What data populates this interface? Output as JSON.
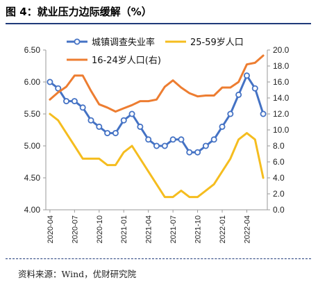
{
  "figure": {
    "title": "图 4：就业压力边际缓解（%）",
    "source": "资料来源：Wind，优财研究院"
  },
  "chart_data": {
    "type": "line",
    "categories": [
      "2020-04",
      "2020-05",
      "2020-06",
      "2020-07",
      "2020-08",
      "2020-09",
      "2020-10",
      "2020-11",
      "2020-12",
      "2021-01",
      "2021-02",
      "2021-03",
      "2021-04",
      "2021-05",
      "2021-06",
      "2021-07",
      "2021-08",
      "2021-09",
      "2021-10",
      "2021-11",
      "2021-12",
      "2022-01",
      "2022-02",
      "2022-03",
      "2022-04",
      "2022-05",
      "2022-06"
    ],
    "x_tick_labels": [
      "2020-04",
      "2020-07",
      "2020-10",
      "2021-01",
      "2021-04",
      "2021-07",
      "2021-10",
      "2022-01",
      "2022-04"
    ],
    "left_axis": {
      "ylim": [
        4.0,
        6.5
      ],
      "ticks": [
        "4.00",
        "4.50",
        "5.00",
        "5.50",
        "6.00",
        "6.50"
      ]
    },
    "right_axis": {
      "ylim": [
        0.0,
        20.0
      ],
      "ticks": [
        "0.0",
        "2.0",
        "4.0",
        "6.0",
        "8.0",
        "10.0",
        "12.0",
        "14.0",
        "16.0",
        "18.0",
        "20.0"
      ]
    },
    "legend_position": "top",
    "series": [
      {
        "name": "城镇调查失业率",
        "axis": "left",
        "color": "#4472c4",
        "marker": "circle",
        "values": [
          6.0,
          5.9,
          5.7,
          5.7,
          5.6,
          5.4,
          5.3,
          5.2,
          5.2,
          5.4,
          5.5,
          5.3,
          5.1,
          5.0,
          5.0,
          5.1,
          5.1,
          4.9,
          4.9,
          5.0,
          5.1,
          5.3,
          5.5,
          5.8,
          6.1,
          5.9,
          5.5
        ]
      },
      {
        "name": "25-59岁人口",
        "axis": "left",
        "color": "#f5bd1f",
        "values": [
          5.5,
          5.4,
          5.2,
          5.0,
          4.8,
          4.8,
          4.8,
          4.7,
          4.7,
          4.9,
          5.0,
          4.8,
          4.6,
          4.4,
          4.2,
          4.2,
          4.3,
          4.2,
          4.2,
          4.3,
          4.4,
          4.6,
          4.8,
          5.1,
          5.2,
          5.1,
          4.5
        ]
      },
      {
        "name": "16-24岁人口(右)",
        "axis": "right",
        "color": "#ed7d31",
        "values": [
          13.8,
          14.7,
          15.4,
          16.8,
          16.8,
          14.9,
          13.2,
          12.8,
          12.3,
          12.7,
          13.1,
          13.6,
          13.6,
          13.8,
          15.4,
          16.2,
          15.3,
          14.6,
          14.2,
          14.3,
          14.3,
          15.3,
          15.3,
          16.0,
          18.2,
          18.4,
          19.3
        ]
      }
    ]
  }
}
